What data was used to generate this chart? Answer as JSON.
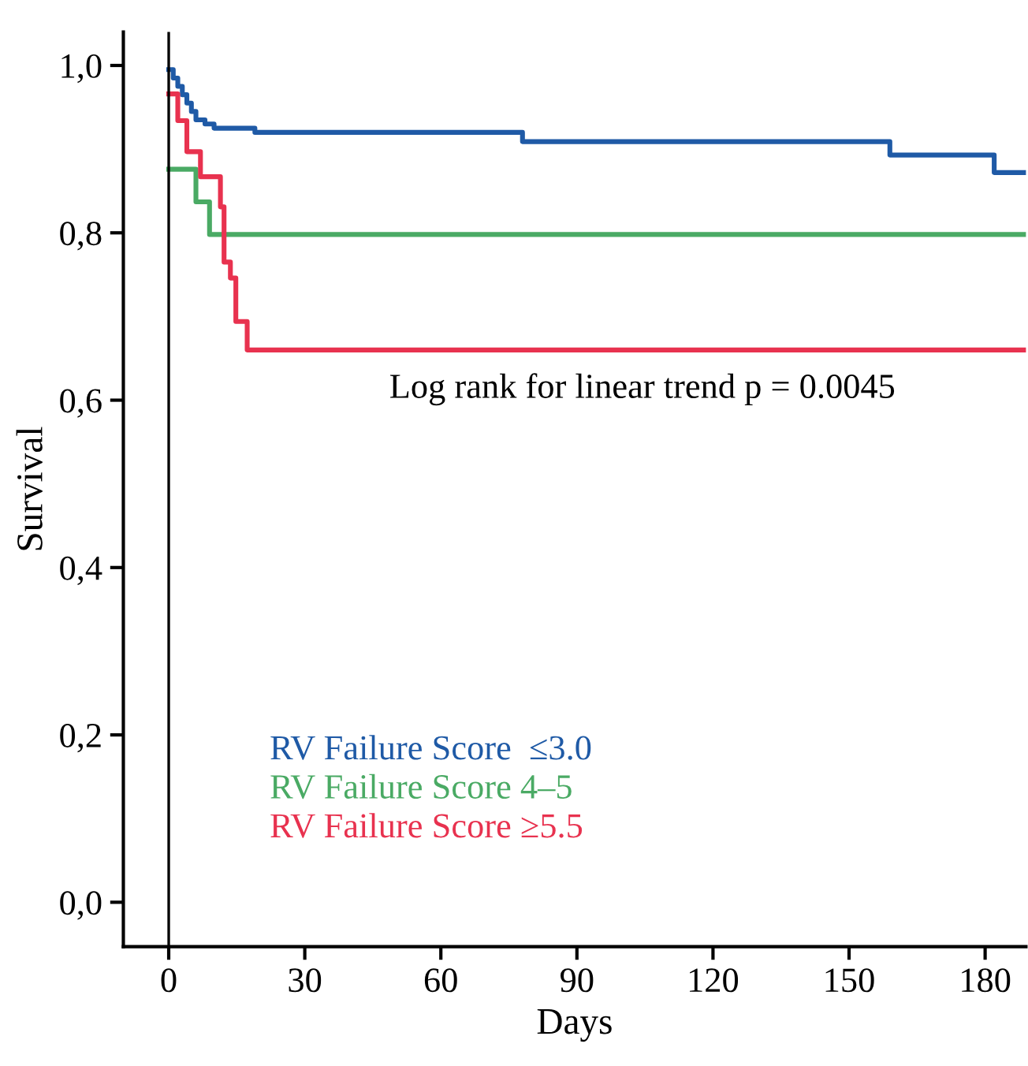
{
  "chart_data": {
    "type": "step",
    "xlabel": "Days",
    "ylabel": "Survival",
    "annotations": [
      "Log rank for linear trend p = 0.0045"
    ],
    "xlim": [
      -10,
      189
    ],
    "xticks": [
      0,
      30,
      60,
      90,
      120,
      150,
      180
    ],
    "ylim": [
      -0.053,
      1.04
    ],
    "yticks": [
      {
        "value": 0,
        "label": "0,0"
      },
      {
        "value": 0.2,
        "label": "0,2"
      },
      {
        "value": 0.4,
        "label": "0,4"
      },
      {
        "value": 0.6,
        "label": "0,6"
      },
      {
        "value": 0.8,
        "label": "0,8"
      },
      {
        "value": 1.0,
        "label": "1,0"
      }
    ],
    "ref_lines": [
      {
        "axis": "x",
        "value": 0,
        "color": "#000000"
      }
    ],
    "legend": "bottom left",
    "grid": false,
    "series": [
      {
        "name": "RV Failure Score  ≤3.0",
        "color": "#1f5aa6",
        "x": [
          0,
          1,
          2,
          3,
          4,
          5,
          6,
          8,
          10,
          19,
          78,
          159,
          182,
          189
        ],
        "values": [
          0.995,
          0.985,
          0.975,
          0.965,
          0.955,
          0.945,
          0.935,
          0.93,
          0.925,
          0.92,
          0.909,
          0.893,
          0.872,
          0.872
        ]
      },
      {
        "name": "RV Failure Score 4–5",
        "color": "#4aaa64",
        "x": [
          0,
          6,
          9,
          189
        ],
        "values": [
          0.876,
          0.837,
          0.798,
          0.798
        ]
      },
      {
        "name": "RV Failure Score ≥5.5",
        "color": "#e8324f",
        "x": [
          0,
          2,
          4,
          7,
          11.4,
          12.2,
          13.6,
          14.8,
          17.3,
          189
        ],
        "values": [
          0.966,
          0.934,
          0.897,
          0.867,
          0.831,
          0.765,
          0.746,
          0.694,
          0.66,
          0.66
        ]
      }
    ]
  }
}
